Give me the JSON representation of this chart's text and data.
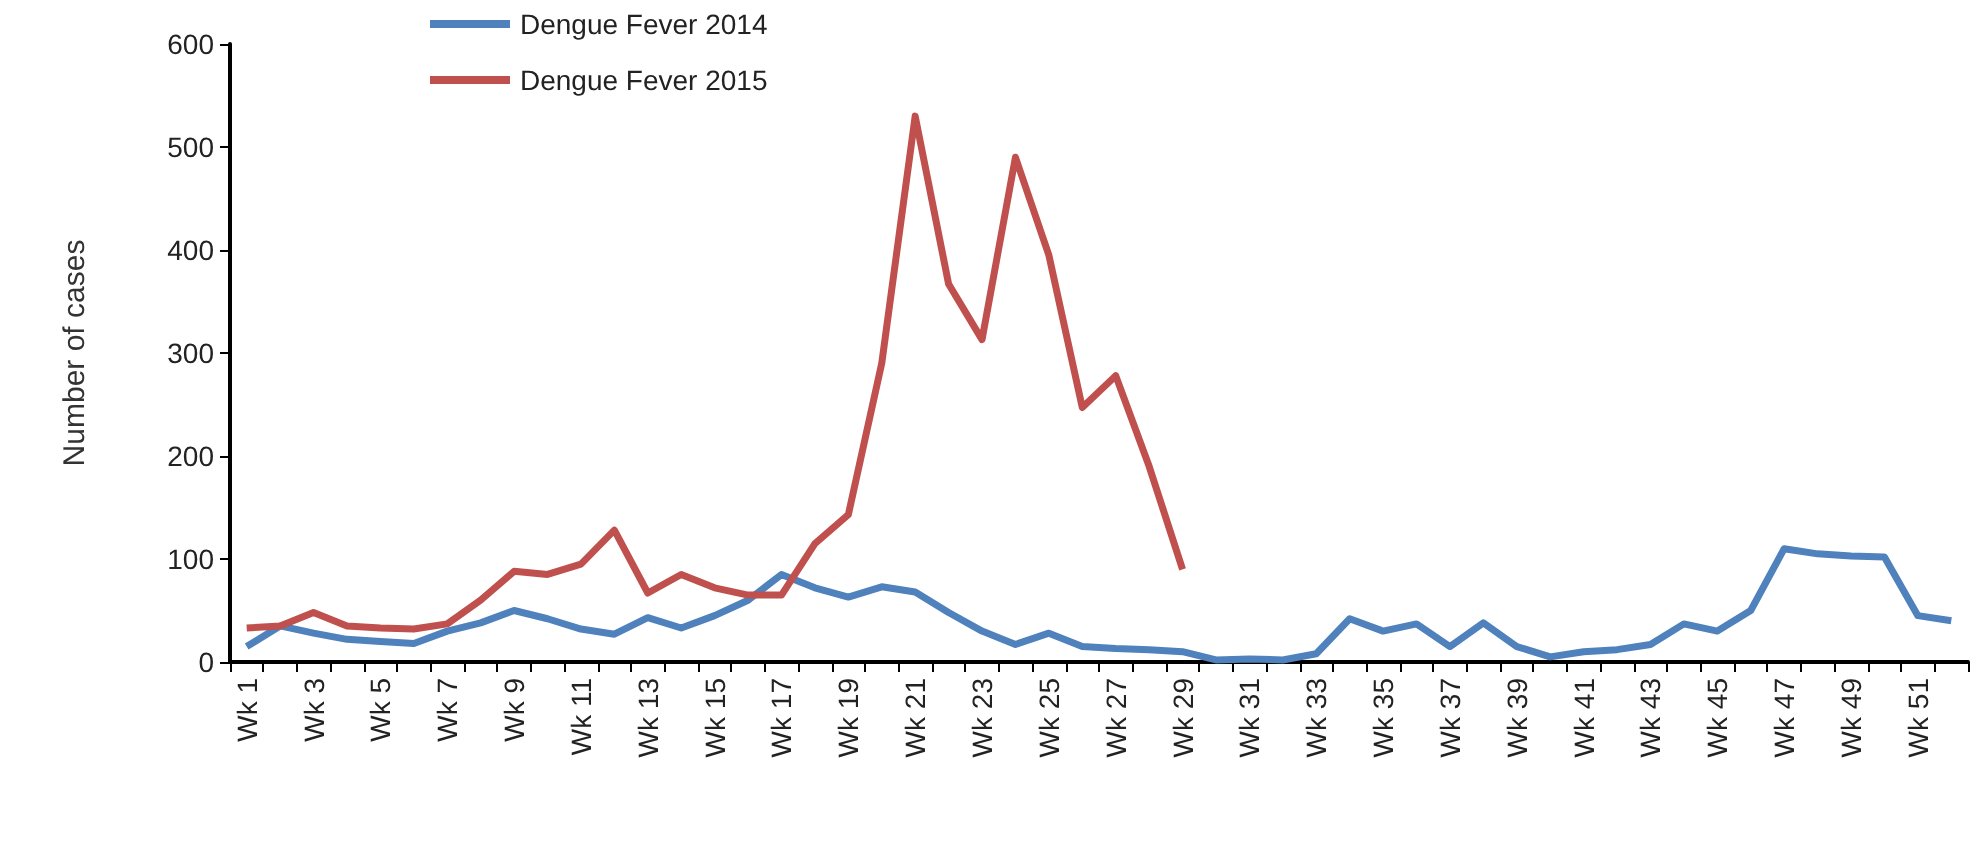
{
  "chart_data": {
    "type": "line",
    "ylabel": "Number of cases",
    "categories": [
      "Wk 1",
      null,
      "Wk 3",
      null,
      "Wk 5",
      null,
      "Wk 7",
      null,
      "Wk 9",
      null,
      "Wk 11",
      null,
      "Wk 13",
      null,
      "Wk 15",
      null,
      "Wk 17",
      null,
      "Wk 19",
      null,
      "Wk 21",
      null,
      "Wk 23",
      null,
      "Wk 25",
      null,
      "Wk 27",
      null,
      "Wk 29",
      null,
      "Wk 31",
      null,
      "Wk 33",
      null,
      "Wk 35",
      null,
      "Wk 37",
      null,
      "Wk 39",
      null,
      "Wk 41",
      null,
      "Wk 43",
      null,
      "Wk 45",
      null,
      "Wk 47",
      null,
      "Wk 49",
      null,
      "Wk 51",
      null
    ],
    "series": [
      {
        "name": "Dengue Fever 2014",
        "color": "#4f81bd",
        "values": [
          15,
          35,
          28,
          22,
          20,
          18,
          30,
          38,
          50,
          42,
          32,
          27,
          43,
          33,
          45,
          60,
          85,
          72,
          63,
          73,
          68,
          48,
          30,
          17,
          28,
          15,
          13,
          12,
          10,
          2,
          3,
          2,
          8,
          42,
          30,
          37,
          15,
          38,
          15,
          5,
          10,
          12,
          17,
          37,
          30,
          50,
          110,
          105,
          103,
          102,
          45,
          40
        ]
      },
      {
        "name": "Dengue Fever 2015",
        "color": "#c0504d",
        "values": [
          33,
          35,
          48,
          35,
          33,
          32,
          37,
          60,
          88,
          85,
          95,
          128,
          67,
          85,
          72,
          65,
          65,
          115,
          143,
          290,
          530,
          367,
          313,
          490,
          395,
          247,
          278,
          190,
          90,
          null,
          null,
          null,
          null,
          null,
          null,
          null,
          null,
          null,
          null,
          null,
          null,
          null,
          null,
          null,
          null,
          null,
          null,
          null,
          null,
          null,
          null,
          null
        ]
      }
    ],
    "ylim": [
      0,
      600
    ],
    "yticks": [
      0,
      100,
      200,
      300,
      400,
      500,
      600
    ],
    "grid": false,
    "legend": "top",
    "marker": "none",
    "line_style": "solid"
  }
}
